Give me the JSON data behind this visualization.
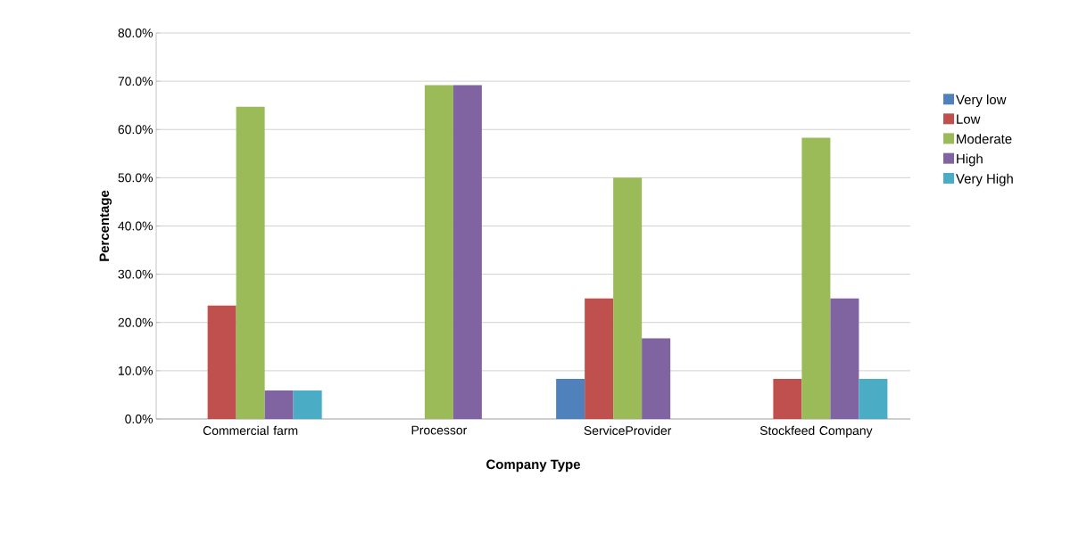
{
  "chart_data": {
    "type": "bar",
    "xlabel": "Company Type",
    "ylabel": "Percentage",
    "categories": [
      "Commercial farm",
      "Processor",
      "ServiceProvider",
      "Stockfeed Company"
    ],
    "series": [
      {
        "name": "Very low",
        "color": "#4f81bd",
        "values": [
          0,
          0,
          8.3,
          0
        ]
      },
      {
        "name": "Low",
        "color": "#c0504d",
        "values": [
          23.5,
          0,
          25.0,
          8.3
        ]
      },
      {
        "name": "Moderate",
        "color": "#9bbb59",
        "values": [
          64.7,
          69.2,
          50.0,
          58.3
        ]
      },
      {
        "name": "High",
        "color": "#8064a2",
        "values": [
          5.9,
          69.2,
          16.7,
          25.0
        ]
      },
      {
        "name": "Very High",
        "color": "#4bacc6",
        "values": [
          5.9,
          0,
          0,
          8.3
        ]
      }
    ],
    "ylim": [
      0,
      80
    ],
    "yticks": [
      {
        "value": 0,
        "label": "0.0%"
      },
      {
        "value": 10,
        "label": "10.0%"
      },
      {
        "value": 20,
        "label": "20.0%"
      },
      {
        "value": 30,
        "label": "30.0%"
      },
      {
        "value": 40,
        "label": "40.0%"
      },
      {
        "value": 50,
        "label": "50.0%"
      },
      {
        "value": 60,
        "label": "60.0%"
      },
      {
        "value": 70,
        "label": "70.0%"
      },
      {
        "value": 80,
        "label": "80.0%"
      }
    ],
    "grid": "y",
    "legend": "right"
  }
}
